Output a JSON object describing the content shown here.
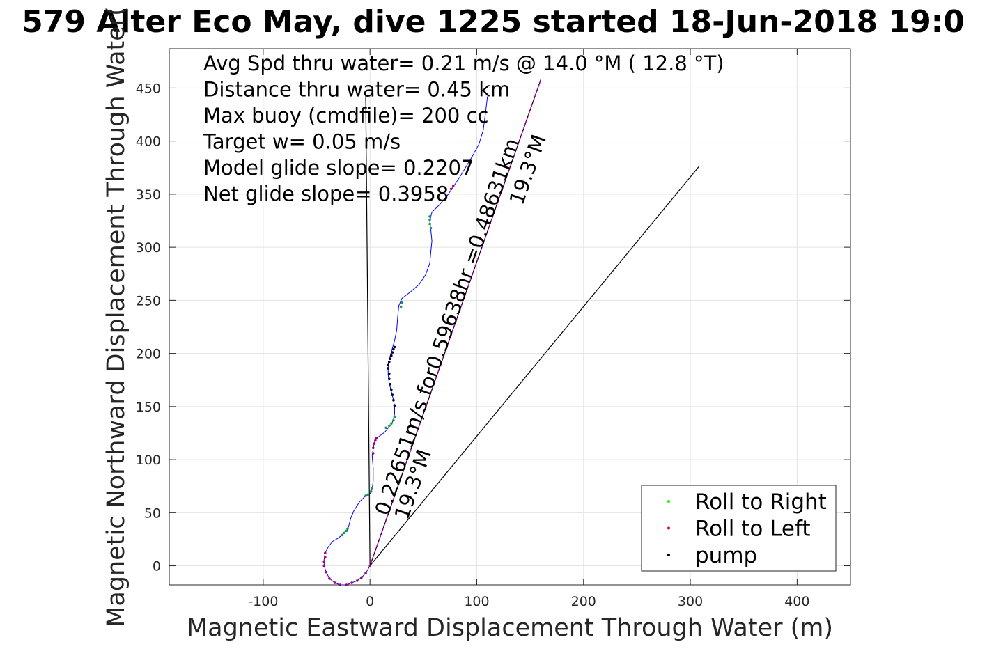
{
  "chart_data": {
    "type": "scatter",
    "title": "579 Alter Eco May, dive 1225 started 18-Jun-2018 19:0",
    "xlabel": "Magnetic Eastward Displacement Through Water (m)",
    "ylabel": "Magnetic Northward Displacement Through Water(",
    "xlim": [
      -188,
      450
    ],
    "ylim": [
      -18,
      487
    ],
    "xticks": [
      -100,
      0,
      100,
      200,
      300,
      400
    ],
    "xtick_labels": [
      "-100",
      "0",
      "100",
      "200",
      "300",
      "400"
    ],
    "yticks": [
      0,
      50,
      100,
      150,
      200,
      250,
      300,
      350,
      400,
      450
    ],
    "ytick_labels": [
      "0",
      "50",
      "100",
      "150",
      "200",
      "250",
      "300",
      "350",
      "400",
      "450"
    ],
    "grid": true,
    "annotations": [
      "Avg Spd thru water=  0.21 m/s @  14.0 °M ( 12.8 °T)",
      "Distance thru water=  0.45 km",
      "Max buoy (cmdfile)= 200 cc",
      "Target w= 0.05 m/s",
      "Model glide slope= 0.2207",
      "Net glide slope= 0.3958"
    ],
    "rotated_labels": [
      {
        "text": "0.22651m/s for0.59638hr =0.48631km",
        "angle_text": "19.3°M"
      },
      {
        "text": "",
        "angle_text": "19.3°M"
      }
    ],
    "legend": {
      "location": "bottom-right",
      "entries": [
        {
          "label": "Roll to Right",
          "color": "#00ff00"
        },
        {
          "label": "Roll to Left",
          "color": "#ff0000"
        },
        {
          "label": "pump",
          "color": "#000000"
        }
      ]
    },
    "series": [
      {
        "kind": "track",
        "color": "#0000ff",
        "points": [
          [
            0,
            0
          ],
          [
            -4,
            -7
          ],
          [
            -8,
            -11
          ],
          [
            -12,
            -14
          ],
          [
            -17,
            -16
          ],
          [
            -22,
            -18
          ],
          [
            -28,
            -18
          ],
          [
            -33,
            -16
          ],
          [
            -38,
            -12
          ],
          [
            -41,
            -6
          ],
          [
            -43,
            0
          ],
          [
            -43,
            6
          ],
          [
            -42,
            12
          ],
          [
            -39,
            18
          ],
          [
            -35,
            23
          ],
          [
            -30,
            26
          ],
          [
            -26,
            29
          ],
          [
            -22,
            33
          ],
          [
            -20,
            37
          ],
          [
            -18,
            45
          ],
          [
            -15,
            52
          ],
          [
            -10,
            60
          ],
          [
            -5,
            65
          ],
          [
            0,
            68
          ],
          [
            2,
            72
          ],
          [
            3,
            80
          ],
          [
            3,
            92
          ],
          [
            2,
            104
          ],
          [
            3,
            110
          ],
          [
            4,
            116
          ],
          [
            6,
            120
          ],
          [
            10,
            123
          ],
          [
            14,
            126
          ],
          [
            17,
            130
          ],
          [
            20,
            133
          ],
          [
            22,
            138
          ],
          [
            23,
            143
          ],
          [
            23,
            150
          ],
          [
            22,
            156
          ],
          [
            20,
            164
          ],
          [
            18,
            172
          ],
          [
            17,
            180
          ],
          [
            17,
            190
          ],
          [
            19,
            198
          ],
          [
            21,
            205
          ],
          [
            23,
            212
          ],
          [
            25,
            222
          ],
          [
            26,
            235
          ],
          [
            27,
            245
          ],
          [
            30,
            252
          ],
          [
            38,
            258
          ],
          [
            46,
            265
          ],
          [
            52,
            274
          ],
          [
            56,
            285
          ],
          [
            57,
            296
          ],
          [
            58,
            306
          ],
          [
            57,
            316
          ],
          [
            56,
            325
          ],
          [
            58,
            333
          ],
          [
            65,
            340
          ],
          [
            72,
            348
          ],
          [
            78,
            357
          ],
          [
            84,
            366
          ],
          [
            90,
            376
          ],
          [
            96,
            386
          ],
          [
            102,
            397
          ],
          [
            106,
            410
          ],
          [
            108,
            425
          ],
          [
            110,
            442
          ]
        ]
      },
      {
        "kind": "markers",
        "label": "Roll to Left",
        "color": "#b0005a",
        "points": [
          [
            0,
            0
          ],
          [
            -4,
            -7
          ],
          [
            -8,
            -11
          ],
          [
            -12,
            -14
          ],
          [
            -17,
            -16
          ],
          [
            -22,
            -18
          ],
          [
            -28,
            -18
          ],
          [
            -33,
            -16
          ],
          [
            -38,
            -12
          ],
          [
            -41,
            -6
          ],
          [
            -43,
            0
          ],
          [
            -43,
            4
          ],
          [
            -42,
            8
          ],
          [
            -42,
            12
          ],
          [
            3,
            106
          ],
          [
            3,
            111
          ],
          [
            4,
            115
          ],
          [
            5,
            118
          ],
          [
            6,
            120
          ],
          [
            76,
            355
          ],
          [
            78,
            358
          ]
        ]
      },
      {
        "kind": "markers",
        "label": "Roll to Right",
        "color": "#1a9850",
        "points": [
          [
            -26,
            29
          ],
          [
            -24,
            31
          ],
          [
            -22,
            33
          ],
          [
            -21,
            35
          ],
          [
            -4,
            66
          ],
          [
            -2,
            67
          ],
          [
            1,
            70
          ],
          [
            2,
            73
          ],
          [
            15,
            130
          ],
          [
            18,
            132
          ],
          [
            20,
            134
          ],
          [
            22,
            137
          ],
          [
            23,
            140
          ],
          [
            29,
            244
          ],
          [
            30,
            248
          ],
          [
            57,
            318
          ],
          [
            56,
            322
          ],
          [
            56,
            326
          ],
          [
            56,
            329
          ]
        ]
      },
      {
        "kind": "markers",
        "label": "pump",
        "color": "#000033",
        "points": [
          [
            23,
            151
          ],
          [
            22,
            156
          ],
          [
            21,
            161
          ],
          [
            20,
            166
          ],
          [
            19,
            171
          ],
          [
            18,
            176
          ],
          [
            18,
            181
          ],
          [
            17,
            186
          ],
          [
            17,
            189
          ],
          [
            18,
            192
          ],
          [
            19,
            195
          ],
          [
            20,
            198
          ],
          [
            21,
            201
          ],
          [
            22,
            204
          ],
          [
            23,
            206
          ]
        ]
      },
      {
        "kind": "line",
        "label": "average velocity vector",
        "color": "#cc00cc",
        "points": [
          [
            0,
            0
          ],
          [
            160,
            458
          ]
        ]
      },
      {
        "kind": "line",
        "label": "net displacement",
        "color": "#000000",
        "points": [
          [
            0,
            0
          ],
          [
            160,
            458
          ]
        ]
      },
      {
        "kind": "line",
        "label": "current direction",
        "color": "#000000",
        "points": [
          [
            0,
            0
          ],
          [
            308,
            376
          ]
        ]
      },
      {
        "kind": "line",
        "label": "pointing line",
        "color": "#000000",
        "points": [
          [
            0,
            0
          ],
          [
            -4,
            443
          ]
        ]
      }
    ]
  }
}
